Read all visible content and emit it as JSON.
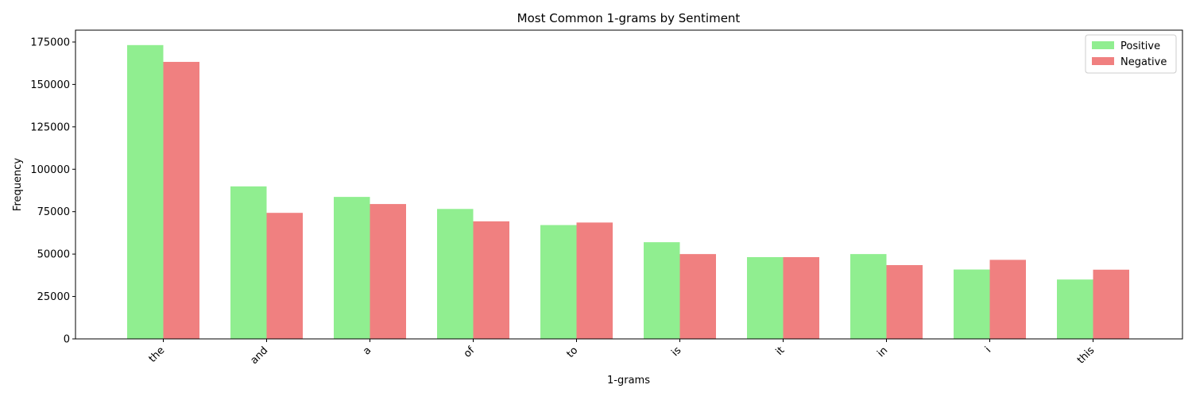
{
  "chart_data": {
    "type": "bar",
    "title": "Most Common 1-grams by Sentiment",
    "xlabel": "1-grams",
    "ylabel": "Frequency",
    "categories": [
      "the",
      "and",
      "a",
      "of",
      "to",
      "is",
      "it",
      "in",
      "i",
      "this"
    ],
    "series": [
      {
        "name": "Positive",
        "color": "#90ee90",
        "values": [
          173200,
          89900,
          83700,
          76600,
          67100,
          57000,
          48200,
          50000,
          40900,
          35000
        ]
      },
      {
        "name": "Negative",
        "color": "#f08080",
        "values": [
          163300,
          74300,
          79500,
          69300,
          68600,
          50000,
          48200,
          43500,
          46600,
          40800
        ]
      }
    ],
    "ylim": [
      0,
      182000
    ],
    "yticks": [
      0,
      25000,
      50000,
      75000,
      100000,
      125000,
      150000,
      175000
    ],
    "grid": false,
    "legend_position": "top-right"
  }
}
